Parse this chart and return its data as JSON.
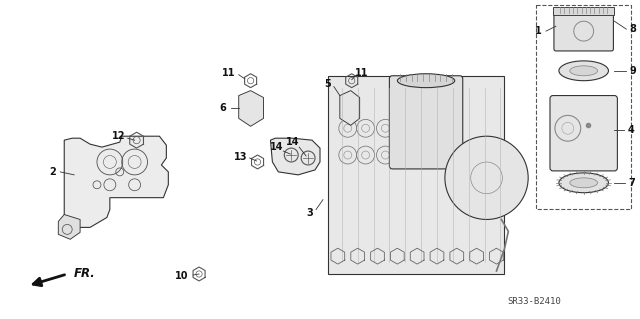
{
  "bg_color": "#ffffff",
  "line_color": "#333333",
  "diagram_color": "#555555",
  "diagram_code": "SR33-B2410",
  "part_font_size": 7,
  "fr_label": "FR."
}
